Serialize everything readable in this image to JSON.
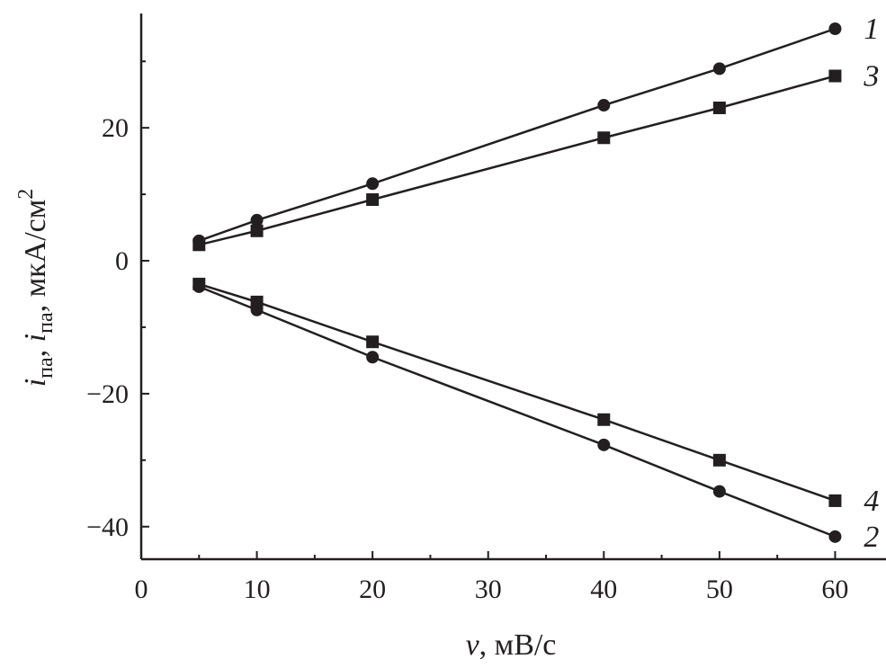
{
  "chart_data": {
    "type": "line",
    "title": "",
    "xlabel": {
      "var": "v",
      "unit": ", мВ/с"
    },
    "ylabel": {
      "var1": "i",
      "sub1": "па",
      "sep": ", ",
      "var2": "i",
      "sub2": "па",
      "unit": ", мкА/см",
      "sup": "2"
    },
    "xlim": [
      0,
      64.4
    ],
    "ylim": [
      -44.9,
      37.2
    ],
    "xticks": [
      0,
      10,
      20,
      30,
      40,
      50,
      60
    ],
    "yticks": [
      20,
      0,
      -20,
      -40
    ],
    "ytick_labels": [
      "20",
      "0",
      "−20",
      "−40"
    ],
    "grid": false,
    "color": "#231f20",
    "series": [
      {
        "name": "1",
        "marker": "circle",
        "x": [
          5,
          10,
          20,
          40,
          50,
          60
        ],
        "y": [
          3.0,
          6.1,
          11.6,
          23.4,
          28.9,
          34.9
        ]
      },
      {
        "name": "2",
        "marker": "circle",
        "x": [
          5,
          10,
          20,
          40,
          50,
          60
        ],
        "y": [
          -3.9,
          -7.4,
          -14.5,
          -27.7,
          -34.7,
          -41.5
        ]
      },
      {
        "name": "3",
        "marker": "square",
        "x": [
          5,
          10,
          20,
          40,
          50,
          60
        ],
        "y": [
          2.4,
          4.5,
          9.2,
          18.5,
          23.0,
          27.8
        ]
      },
      {
        "name": "4",
        "marker": "square",
        "x": [
          5,
          10,
          20,
          40,
          50,
          60
        ],
        "y": [
          -3.5,
          -6.2,
          -12.2,
          -23.9,
          -30.0,
          -36.1
        ]
      }
    ]
  }
}
